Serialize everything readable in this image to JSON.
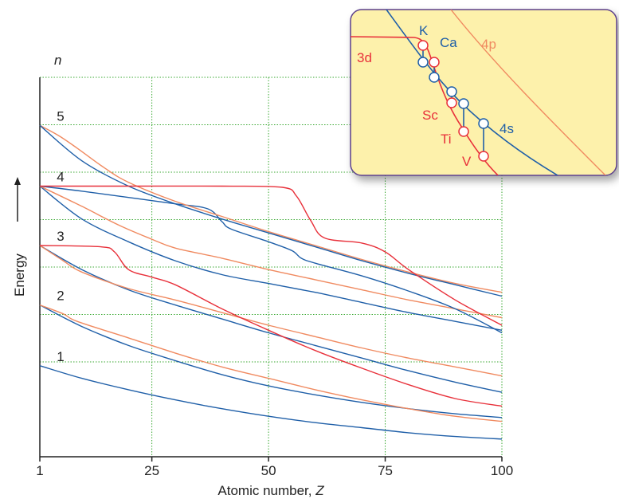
{
  "chart_data": {
    "type": "line",
    "title": "",
    "xlabel_text": "Atomic number, ",
    "xlabel_var": "Z",
    "ylabel": "Energy",
    "n_label": "n",
    "xlim": [
      1,
      100
    ],
    "xticks": [
      "1",
      "25",
      "50",
      "75",
      "100"
    ],
    "grid": true,
    "n_levels": [
      {
        "n": "1",
        "energy": 0.72
      },
      {
        "n": "2",
        "energy": 1.2
      },
      {
        "n": "3",
        "energy": 1.67
      },
      {
        "n": "4",
        "energy": 2.14
      },
      {
        "n": "5",
        "energy": 2.62
      }
    ],
    "series": [
      {
        "color": "#1f5fa8",
        "x": [
          1,
          10,
          20,
          30,
          40,
          50,
          60,
          70,
          80,
          90,
          100
        ],
        "y": [
          0.72,
          0.62,
          0.53,
          0.45,
          0.38,
          0.32,
          0.27,
          0.23,
          0.19,
          0.16,
          0.14
        ]
      },
      {
        "color": "#1f5fa8",
        "x": [
          1,
          10,
          20,
          30,
          40,
          50,
          60,
          70,
          80,
          90,
          100
        ],
        "y": [
          1.2,
          1.03,
          0.88,
          0.76,
          0.65,
          0.56,
          0.49,
          0.43,
          0.38,
          0.34,
          0.31
        ]
      },
      {
        "color": "#f08a60",
        "x": [
          1,
          6,
          9,
          20,
          30,
          40,
          50,
          60,
          70,
          80,
          90,
          100
        ],
        "y": [
          1.2,
          1.13,
          1.07,
          0.94,
          0.82,
          0.71,
          0.62,
          0.53,
          0.45,
          0.38,
          0.32,
          0.28
        ]
      },
      {
        "color": "#1f5fa8",
        "x": [
          1,
          10,
          20,
          30,
          40,
          50,
          60,
          70,
          80,
          90,
          100
        ],
        "y": [
          1.67,
          1.48,
          1.32,
          1.2,
          1.09,
          0.98,
          0.88,
          0.78,
          0.68,
          0.59,
          0.51
        ]
      },
      {
        "color": "#f08a60",
        "x": [
          1,
          6,
          10,
          20,
          30,
          40,
          50,
          60,
          70,
          80,
          90,
          100
        ],
        "y": [
          1.67,
          1.55,
          1.46,
          1.33,
          1.24,
          1.14,
          1.04,
          0.95,
          0.86,
          0.78,
          0.71,
          0.64
        ]
      },
      {
        "color": "#e8303a",
        "x": [
          1,
          14,
          17,
          20,
          25,
          30,
          40,
          50,
          60,
          70,
          80,
          90,
          100
        ],
        "y": [
          1.67,
          1.66,
          1.62,
          1.48,
          1.42,
          1.36,
          1.17,
          1.0,
          0.84,
          0.7,
          0.57,
          0.46,
          0.4
        ]
      },
      {
        "color": "#1f5fa8",
        "x": [
          1,
          10,
          20,
          30,
          40,
          50,
          60,
          70,
          80,
          90,
          100
        ],
        "y": [
          2.14,
          1.88,
          1.7,
          1.55,
          1.44,
          1.37,
          1.3,
          1.22,
          1.14,
          1.07,
          1.0
        ]
      },
      {
        "color": "#f08a60",
        "x": [
          1,
          10,
          18,
          25,
          30,
          40,
          50,
          60,
          70,
          80,
          90,
          100
        ],
        "y": [
          2.14,
          1.98,
          1.83,
          1.72,
          1.65,
          1.57,
          1.48,
          1.4,
          1.32,
          1.24,
          1.17,
          1.1
        ]
      },
      {
        "color": "#1f5fa8",
        "x": [
          1,
          10,
          20,
          30,
          37,
          40,
          42,
          50,
          55,
          57,
          60,
          70,
          80,
          90,
          100
        ],
        "y": [
          2.14,
          2.1,
          2.05,
          2.0,
          1.96,
          1.86,
          1.8,
          1.7,
          1.63,
          1.57,
          1.53,
          1.43,
          1.31,
          1.17,
          0.98
        ]
      },
      {
        "color": "#f08a60",
        "x": [
          1,
          5,
          9,
          15,
          20,
          30,
          40,
          50,
          60,
          70,
          80,
          90,
          100
        ],
        "y": [
          2.62,
          2.54,
          2.44,
          2.28,
          2.17,
          2.02,
          1.9,
          1.78,
          1.67,
          1.56,
          1.46,
          1.37,
          1.3
        ]
      },
      {
        "color": "#1f5fa8",
        "x": [
          1,
          10,
          20,
          30,
          40,
          50,
          60,
          70,
          80,
          90,
          100
        ],
        "y": [
          2.62,
          2.34,
          2.14,
          2.0,
          1.88,
          1.77,
          1.66,
          1.55,
          1.45,
          1.36,
          1.27
        ]
      },
      {
        "color": "#e8303a",
        "x": [
          1,
          20,
          40,
          53,
          56,
          59,
          62,
          70,
          75,
          80,
          90,
          100
        ],
        "y": [
          2.14,
          2.14,
          2.14,
          2.13,
          2.06,
          1.87,
          1.73,
          1.69,
          1.62,
          1.48,
          1.24,
          1.04
        ]
      }
    ],
    "inset": {
      "labels": {
        "d3": "3d",
        "p4": "4p",
        "s4": "4s",
        "k": "K",
        "ca": "Ca",
        "sc": "Sc",
        "ti": "Ti",
        "v": "V"
      },
      "colors": {
        "background": "#fdf1ab",
        "border": "#5b3f8c",
        "d3": "#e8303a",
        "s4": "#1f5fa8",
        "p4": "#f08a60"
      }
    },
    "colors": {
      "grid": "#3aa832",
      "axis": "#222222",
      "blue": "#1f5fa8",
      "orange": "#f08a60",
      "red": "#e8303a"
    }
  }
}
